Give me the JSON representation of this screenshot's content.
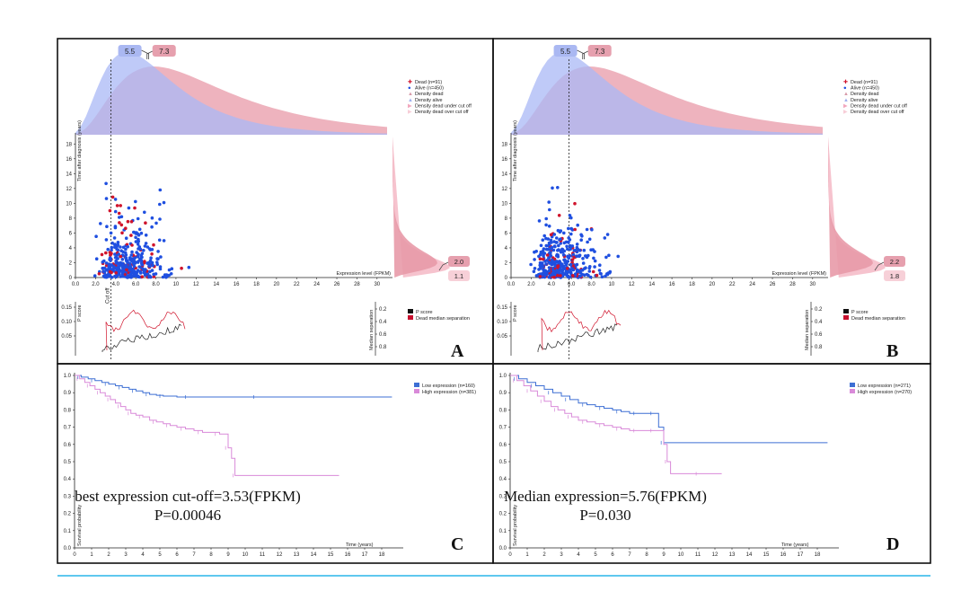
{
  "figure": {
    "accent_line_color": "#29b6e8"
  },
  "chart_data": [
    {
      "panel": "A",
      "type": "scatter",
      "cutoff": 3.53,
      "density_labels": {
        "top_alive": "5.5",
        "top_dead": "7.3",
        "right_a": "2.0",
        "right_b": "1.1"
      },
      "legend": [
        "Dead (n=91)",
        "Alive (n=450)",
        "Density dead",
        "Density alive",
        "Density dead under cut off",
        "Density dead over cut off"
      ],
      "xlabel": "Expression level (FPKM)",
      "ylabel": "Time after diagnosis (years)",
      "cut_label": "Cut off",
      "xticks": [
        "0.0",
        "2.0",
        "4.0",
        "6.0",
        "8.0",
        "10",
        "12",
        "14",
        "16",
        "18",
        "20",
        "22",
        "24",
        "26",
        "28",
        "30"
      ],
      "yticks": [
        "0",
        "2",
        "4",
        "6",
        "8",
        "10",
        "12",
        "14",
        "16",
        "18"
      ],
      "xlim": [
        0,
        31
      ],
      "ylim": [
        0,
        19
      ],
      "pscore": {
        "legend": [
          "P score",
          "Dead median separation"
        ],
        "ylabel_left": "P score",
        "ylabel_right": "Median separation",
        "left_ticks": [
          "0.15",
          "0.10",
          "0.05"
        ],
        "right_ticks": [
          "0.2",
          "0.4",
          "0.6",
          "0.8"
        ]
      },
      "colors": {
        "dead": "#d0142c",
        "alive": "#1f4fe0",
        "density_alive": "#a9b8f5",
        "density_dead": "#e89aa8"
      }
    },
    {
      "panel": "B",
      "type": "scatter",
      "cutoff": 5.76,
      "density_labels": {
        "top_alive": "5.5",
        "top_dead": "7.3",
        "right_a": "2.2",
        "right_b": "1.8"
      },
      "legend": [
        "Dead (n=91)",
        "Alive (n=450)",
        "Density dead",
        "Density alive",
        "Density dead under cut off",
        "Density dead over cut off"
      ],
      "xlabel": "Expression level (FPKM)",
      "ylabel": "Time after diagnosis (years)",
      "xticks": [
        "0.0",
        "2.0",
        "4.0",
        "6.0",
        "8.0",
        "10",
        "12",
        "14",
        "16",
        "18",
        "20",
        "22",
        "24",
        "26",
        "28",
        "30"
      ],
      "yticks": [
        "0",
        "2",
        "4",
        "6",
        "8",
        "10",
        "12",
        "14",
        "16",
        "18"
      ],
      "xlim": [
        0,
        31
      ],
      "ylim": [
        0,
        19
      ],
      "pscore": {
        "legend": [
          "P score",
          "Dead median separation"
        ],
        "ylabel_left": "P score",
        "ylabel_right": "Median separation",
        "left_ticks": [
          "0.15",
          "0.10",
          "0.05"
        ],
        "right_ticks": [
          "0.2",
          "0.4",
          "0.6",
          "0.8"
        ]
      },
      "colors": {
        "dead": "#d0142c",
        "alive": "#1f4fe0",
        "density_alive": "#a9b8f5",
        "density_dead": "#e89aa8"
      }
    },
    {
      "panel": "C",
      "type": "line",
      "title": "best expression cut-off=3.53(FPKM)",
      "pvalue": "P=0.00046",
      "xlabel": "Time (years)",
      "ylabel": "Survival probability",
      "xticks": [
        "0",
        "1",
        "2",
        "3",
        "4",
        "5",
        "6",
        "7",
        "8",
        "9",
        "10",
        "11",
        "12",
        "13",
        "14",
        "15",
        "16",
        "17",
        "18"
      ],
      "yticks": [
        "0.0",
        "0.1",
        "0.2",
        "0.3",
        "0.4",
        "0.5",
        "0.6",
        "0.7",
        "0.8",
        "0.9",
        "1.0"
      ],
      "xlim": [
        0,
        19
      ],
      "ylim": [
        0,
        1.0
      ],
      "series": [
        {
          "name": "Low expression (n=160)",
          "color": "#3d6fd4",
          "x": [
            0,
            0.4,
            0.8,
            1.2,
            1.6,
            2.0,
            2.4,
            2.8,
            3.2,
            3.6,
            4.0,
            4.4,
            4.8,
            5.2,
            6.0,
            7.0,
            9.0,
            12.0,
            18.6
          ],
          "y": [
            1.0,
            0.99,
            0.98,
            0.97,
            0.96,
            0.95,
            0.94,
            0.93,
            0.92,
            0.91,
            0.9,
            0.89,
            0.885,
            0.88,
            0.875,
            0.875,
            0.875,
            0.875,
            0.875
          ]
        },
        {
          "name": "High expression (n=381)",
          "color": "#d98ad9",
          "x": [
            0,
            0.3,
            0.6,
            0.9,
            1.2,
            1.5,
            1.8,
            2.1,
            2.4,
            2.7,
            3.0,
            3.3,
            3.6,
            4.0,
            4.4,
            4.8,
            5.2,
            5.6,
            6.0,
            6.5,
            7.0,
            7.5,
            8.0,
            8.5,
            8.7,
            9.0,
            9.2,
            9.4,
            15.5
          ],
          "y": [
            1.0,
            0.98,
            0.96,
            0.94,
            0.92,
            0.9,
            0.88,
            0.86,
            0.84,
            0.82,
            0.8,
            0.78,
            0.77,
            0.76,
            0.74,
            0.73,
            0.72,
            0.71,
            0.7,
            0.69,
            0.68,
            0.67,
            0.67,
            0.66,
            0.66,
            0.58,
            0.52,
            0.42,
            0.42
          ]
        }
      ]
    },
    {
      "panel": "D",
      "type": "line",
      "title": "Median expression=5.76(FPKM)",
      "pvalue": "P=0.030",
      "xlabel": "Time (years)",
      "ylabel": "Survival probability",
      "xticks": [
        "0",
        "1",
        "2",
        "3",
        "4",
        "5",
        "6",
        "7",
        "8",
        "9",
        "10",
        "11",
        "12",
        "13",
        "14",
        "15",
        "16",
        "17",
        "18"
      ],
      "yticks": [
        "0.0",
        "0.1",
        "0.2",
        "0.3",
        "0.4",
        "0.5",
        "0.6",
        "0.7",
        "0.8",
        "0.9",
        "1.0"
      ],
      "xlim": [
        0,
        19
      ],
      "ylim": [
        0,
        1.0
      ],
      "series": [
        {
          "name": "Low expression (n=271)",
          "color": "#3d6fd4",
          "x": [
            0,
            0.5,
            1.0,
            1.5,
            2.0,
            2.5,
            3.0,
            3.5,
            4.0,
            4.5,
            5.0,
            5.5,
            6.0,
            6.5,
            7.0,
            7.5,
            8.0,
            8.5,
            8.7,
            9.0,
            18.6
          ],
          "y": [
            1.0,
            0.98,
            0.96,
            0.94,
            0.92,
            0.9,
            0.88,
            0.86,
            0.84,
            0.83,
            0.82,
            0.81,
            0.8,
            0.79,
            0.78,
            0.78,
            0.78,
            0.78,
            0.7,
            0.61,
            0.61
          ]
        },
        {
          "name": "High expression (n=270)",
          "color": "#d98ad9",
          "x": [
            0,
            0.4,
            0.8,
            1.2,
            1.6,
            2.0,
            2.4,
            2.8,
            3.2,
            3.6,
            4.0,
            4.5,
            5.0,
            5.5,
            6.0,
            6.5,
            7.0,
            7.5,
            8.0,
            8.5,
            9.0,
            9.2,
            9.4,
            12.4
          ],
          "y": [
            1.0,
            0.97,
            0.94,
            0.91,
            0.88,
            0.85,
            0.82,
            0.8,
            0.78,
            0.76,
            0.74,
            0.73,
            0.72,
            0.71,
            0.7,
            0.69,
            0.68,
            0.68,
            0.68,
            0.68,
            0.6,
            0.5,
            0.43,
            0.43
          ]
        }
      ]
    }
  ]
}
